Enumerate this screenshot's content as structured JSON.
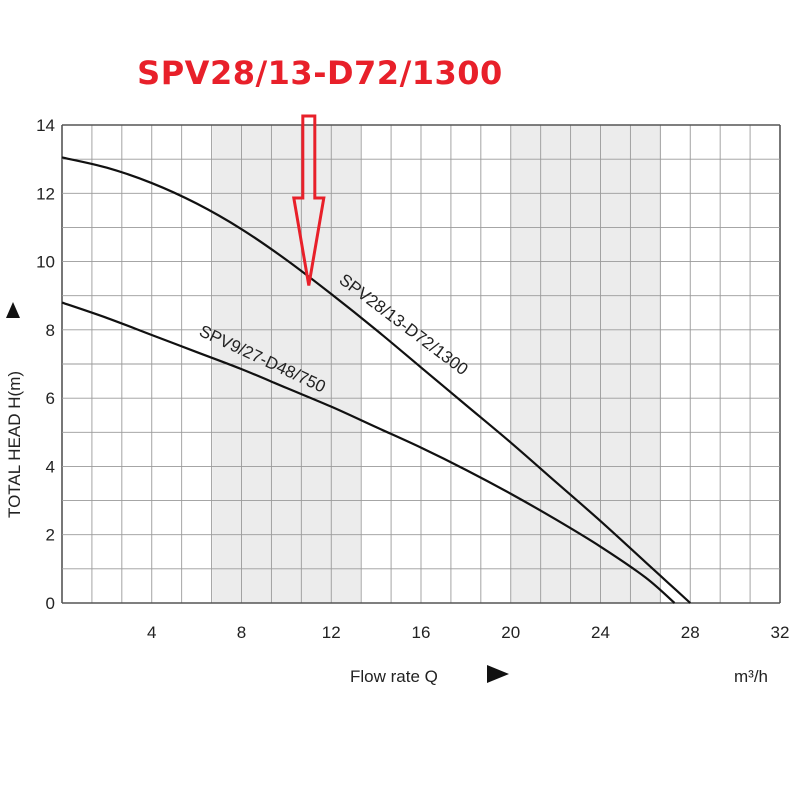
{
  "headline": "SPV28/13-D72/1300",
  "colors": {
    "headline": "#e8202a",
    "curves": "#111111",
    "grid": "#9a9a9a",
    "band": "#ececec"
  },
  "chart_data": {
    "type": "line",
    "xlabel": "Flow rate Q",
    "ylabel": "TOTAL HEAD H(m)",
    "x_unit": "m³/h",
    "xlim": [
      0,
      32
    ],
    "ylim": [
      0,
      14
    ],
    "x_tick_labels": [
      "4",
      "8",
      "12",
      "16",
      "20",
      "24",
      "28",
      "32"
    ],
    "y_tick_labels": [
      "0",
      "2",
      "4",
      "6",
      "8",
      "10",
      "12",
      "14"
    ],
    "grid": true,
    "shaded_x_ranges": [
      [
        6.7,
        13.3
      ],
      [
        20,
        26.7
      ]
    ],
    "series": [
      {
        "name": "SPV28/13-D72/1300",
        "x": [
          0,
          2,
          4,
          6,
          8,
          10,
          12,
          14,
          16,
          18,
          20,
          22,
          24,
          26,
          27,
          28
        ],
        "y": [
          13.05,
          12.75,
          12.3,
          11.7,
          10.95,
          10.05,
          9.05,
          8.0,
          6.9,
          5.8,
          4.7,
          3.55,
          2.4,
          1.2,
          0.6,
          0
        ]
      },
      {
        "name": "SPV9/27-D48/750",
        "x": [
          0,
          2,
          4,
          6,
          8,
          10,
          12,
          14,
          16,
          18,
          20,
          22,
          24,
          26,
          27.3
        ],
        "y": [
          8.8,
          8.35,
          7.85,
          7.35,
          6.85,
          6.3,
          5.75,
          5.15,
          4.55,
          3.9,
          3.2,
          2.45,
          1.65,
          0.75,
          0
        ]
      }
    ],
    "annotation": {
      "target": "SPV28/13-D72/1300",
      "x": 11,
      "y": 9.3,
      "marker": "down-arrow"
    }
  }
}
